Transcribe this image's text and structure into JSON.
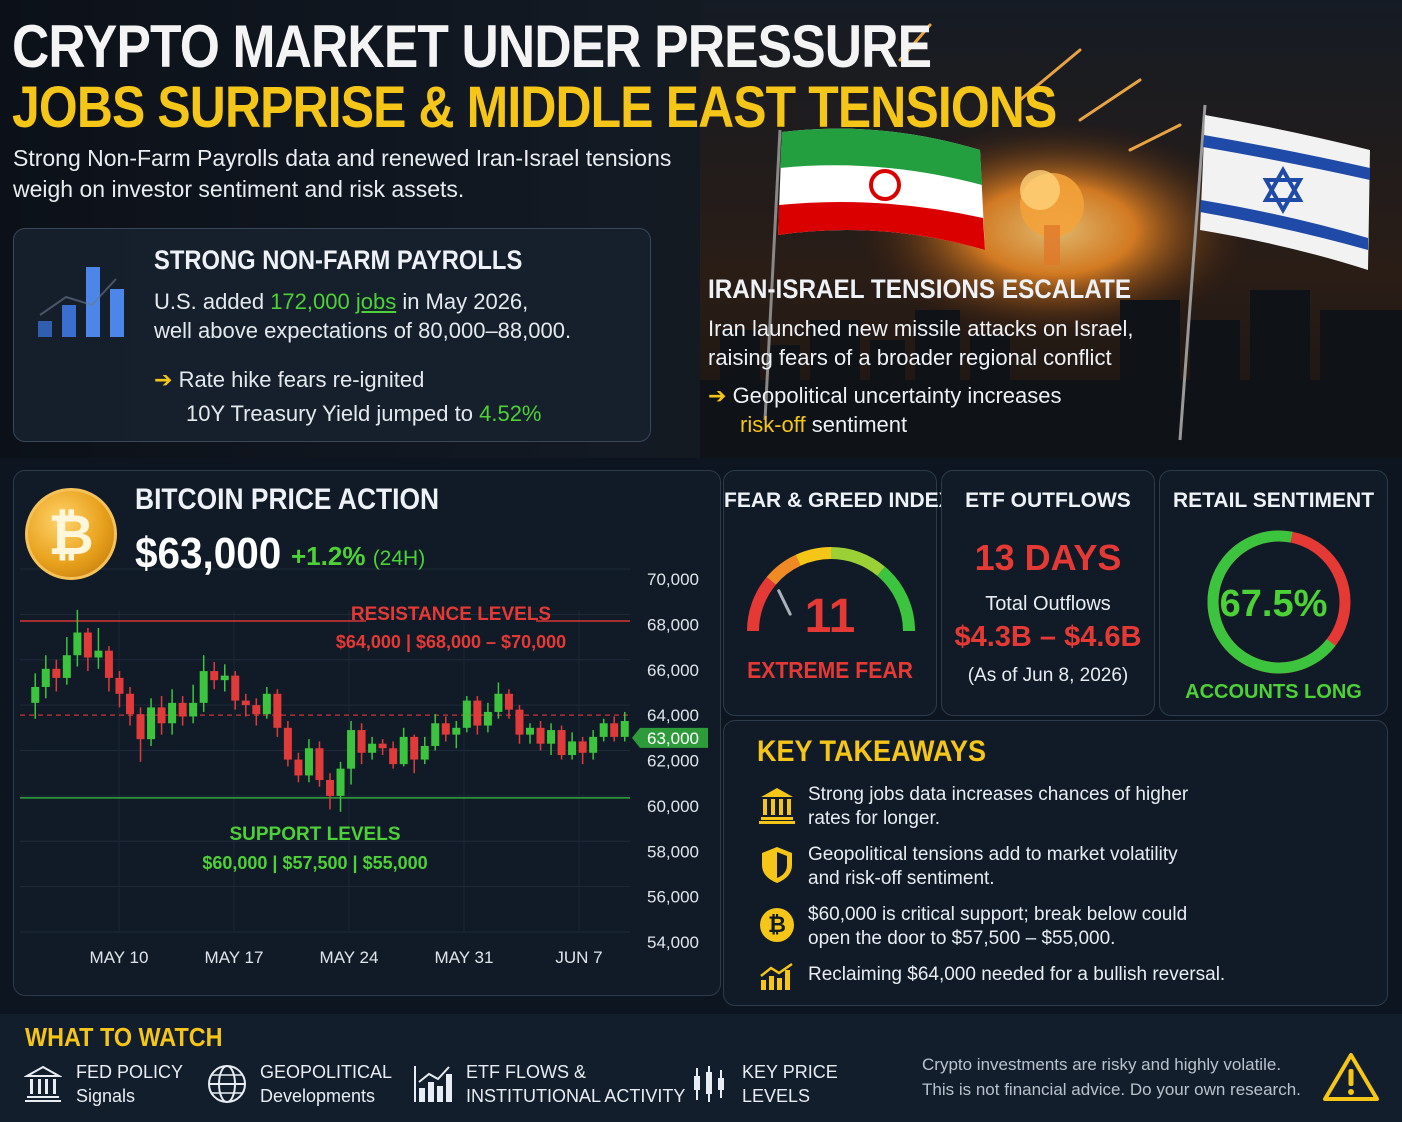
{
  "header": {
    "title_line1": "CRYPTO MARKET UNDER PRESSURE",
    "title_line2": "JOBS SURPRISE & MIDDLE EAST TENSIONS",
    "subtitle_line1": "Strong Non-Farm Payrolls data and renewed Iran-Israel tensions",
    "subtitle_line2": "weigh on investor sentiment and risk assets."
  },
  "nfp": {
    "heading": "STRONG NON-FARM PAYROLLS",
    "line1_prefix": "U.S. added ",
    "line1_value": "172,000",
    "line1_jobs": "jobs",
    "line1_suffix": " in May 2026,",
    "line2": "well above expectations of 80,000–88,000.",
    "bullet1": "Rate hike fears re-ignited",
    "bullet2_prefix": "10Y Treasury Yield jumped to ",
    "bullet2_value": "4.52%"
  },
  "iran": {
    "heading": "IRAN-ISRAEL TENSIONS ESCALATE",
    "line1": "Iran launched new missile attacks on Israel,",
    "line2": "raising fears of a broader regional conflict",
    "bullet1": "Geopolitical uncertainty increases",
    "bullet2_highlight": "risk-off",
    "bullet2_suffix": " sentiment"
  },
  "btc": {
    "heading": "BITCOIN PRICE ACTION",
    "price": "$63,000",
    "change": "+1.2%",
    "change_period": "(24H)",
    "resistance_title": "RESISTANCE LEVELS",
    "resistance_values": "$64,000 | $68,000 – $70,000",
    "support_title": "SUPPORT LEVELS",
    "support_values": "$60,000 | $57,500 | $55,000"
  },
  "chart_data": {
    "type": "candlestick",
    "y_ticks": [
      "70,000",
      "68,000",
      "66,000",
      "64,000",
      "63,000",
      "62,000",
      "60,000",
      "58,000",
      "56,000",
      "54,000"
    ],
    "y_tick_values": [
      70000,
      68000,
      66000,
      64000,
      63000,
      62000,
      60000,
      58000,
      56000,
      54000
    ],
    "x_ticks": [
      "MAY 10",
      "MAY 17",
      "MAY 24",
      "MAY 31",
      "JUN 7"
    ],
    "current_price": 63000,
    "current_price_label": "63,000",
    "resistance_line": 69000,
    "support_line": 60000,
    "dashed_line": 64000,
    "candles": [
      [
        64100,
        64800,
        65400,
        63400
      ],
      [
        64800,
        65600,
        66200,
        64300
      ],
      [
        65600,
        65200,
        66000,
        64600
      ],
      [
        65200,
        66200,
        67000,
        64900
      ],
      [
        66200,
        67200,
        68200,
        65700
      ],
      [
        67200,
        66100,
        67400,
        65500
      ],
      [
        66100,
        66400,
        67400,
        65600
      ],
      [
        66400,
        65200,
        66600,
        64600
      ],
      [
        65200,
        64500,
        65500,
        63900
      ],
      [
        64500,
        63600,
        64800,
        63100
      ],
      [
        63600,
        62500,
        63900,
        61500
      ],
      [
        62500,
        63900,
        64300,
        62200
      ],
      [
        63900,
        63200,
        64400,
        62700
      ],
      [
        63200,
        64100,
        64700,
        62700
      ],
      [
        64100,
        63500,
        64400,
        63100
      ],
      [
        63500,
        64100,
        64900,
        63200
      ],
      [
        64100,
        65500,
        66200,
        63700
      ],
      [
        65500,
        65100,
        65900,
        64700
      ],
      [
        65100,
        65300,
        65800,
        64600
      ],
      [
        65300,
        64200,
        65500,
        63800
      ],
      [
        64200,
        64000,
        64500,
        63500
      ],
      [
        64000,
        63600,
        64300,
        63100
      ],
      [
        63600,
        64500,
        64800,
        63400
      ],
      [
        64500,
        63000,
        64700,
        62600
      ],
      [
        63000,
        61600,
        63300,
        61300
      ],
      [
        61600,
        60900,
        61900,
        60600
      ],
      [
        60900,
        62100,
        62500,
        60600
      ],
      [
        62100,
        60700,
        62400,
        60400
      ],
      [
        60700,
        60000,
        61000,
        59400
      ],
      [
        60000,
        61200,
        61500,
        59300
      ],
      [
        61200,
        62900,
        63300,
        60500
      ],
      [
        62900,
        61900,
        63200,
        61400
      ],
      [
        61900,
        62300,
        62600,
        61600
      ],
      [
        62300,
        62100,
        62500,
        61800
      ],
      [
        62100,
        61400,
        62400,
        61200
      ],
      [
        61400,
        62600,
        63000,
        61300
      ],
      [
        62600,
        61600,
        62700,
        61000
      ],
      [
        61600,
        62200,
        62600,
        61400
      ],
      [
        62200,
        63200,
        63600,
        62000
      ],
      [
        63200,
        62700,
        63500,
        62400
      ],
      [
        62700,
        63000,
        63300,
        62100
      ],
      [
        63000,
        64200,
        64400,
        62800
      ],
      [
        64200,
        63100,
        64400,
        62700
      ],
      [
        63100,
        63700,
        64100,
        62800
      ],
      [
        63700,
        64500,
        65000,
        63400
      ],
      [
        64500,
        63800,
        64700,
        63400
      ],
      [
        63800,
        62700,
        64000,
        62300
      ],
      [
        62700,
        63000,
        63200,
        62300
      ],
      [
        63000,
        62300,
        63300,
        62000
      ],
      [
        62300,
        62900,
        63200,
        61800
      ],
      [
        62900,
        61800,
        63100,
        61600
      ],
      [
        61800,
        62400,
        62800,
        61600
      ],
      [
        62400,
        61900,
        62600,
        61400
      ],
      [
        61900,
        62600,
        62900,
        61600
      ],
      [
        62600,
        63200,
        63400,
        62400
      ],
      [
        63200,
        62600,
        63500,
        62400
      ],
      [
        62600,
        63300,
        63700,
        62400
      ]
    ]
  },
  "fear_greed": {
    "heading": "FEAR & GREED INDEX",
    "value": "11",
    "label": "EXTREME FEAR",
    "value_num": 11
  },
  "etf": {
    "heading": "ETF OUTFLOWS",
    "days": "13 DAYS",
    "total_label": "Total Outflows",
    "amount": "$4.3B – $4.6B",
    "as_of": "(As of Jun 8, 2026)"
  },
  "retail": {
    "heading": "RETAIL SENTIMENT",
    "value": "67.5%",
    "value_num": 67.5,
    "label": "ACCOUNTS LONG"
  },
  "takeaways": {
    "heading": "KEY TAKEAWAYS",
    "items": [
      {
        "icon": "bank-icon",
        "line1": "Strong jobs data increases chances of higher",
        "line2": "rates for longer."
      },
      {
        "icon": "shield-icon",
        "line1": "Geopolitical tensions add to market volatility",
        "line2": "and risk-off sentiment."
      },
      {
        "icon": "bitcoin-icon",
        "line1": "$60,000 is critical support; break below could",
        "line2": "open the door to $57,500 – $55,000."
      },
      {
        "icon": "growth-chart-icon",
        "line1": "Reclaiming $64,000 needed for a bullish reversal.",
        "line2": ""
      }
    ]
  },
  "watch": {
    "heading": "WHAT TO WATCH",
    "items": [
      {
        "icon": "bank-icon",
        "line1": "FED POLICY",
        "line2": "Signals"
      },
      {
        "icon": "globe-icon",
        "line1": "GEOPOLITICAL",
        "line2": "Developments"
      },
      {
        "icon": "bar-chart-icon",
        "line1": "ETF FLOWS &",
        "line2": "INSTITUTIONAL ACTIVITY"
      },
      {
        "icon": "candlestick-icon",
        "line1": "KEY PRICE",
        "line2": "LEVELS"
      }
    ],
    "disclaimer_line1": "Crypto investments are risky and highly volatile.",
    "disclaimer_line2": "This is not financial advice. Do your own research."
  },
  "colors": {
    "accent_yellow": "#f5c518",
    "up_green": "#4cd137",
    "down_red": "#e53935",
    "background": "#0d1520"
  }
}
